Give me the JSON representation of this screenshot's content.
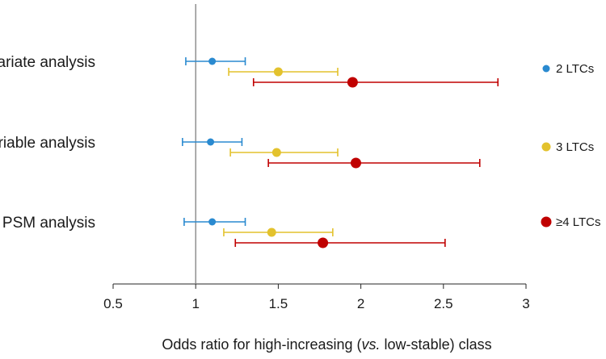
{
  "chart_data": {
    "type": "forest",
    "xlabel": "Odds ratio for high-increasing (vs. low-stable) class",
    "xlabel_parts": [
      "Odds ratio for high-increasing (",
      "vs.",
      " low-stable) class"
    ],
    "xlim": [
      0.5,
      3
    ],
    "xticks": [
      0.5,
      1,
      1.5,
      2,
      2.5,
      3
    ],
    "xtick_labels": [
      "0.5",
      "1",
      "1.5",
      "2",
      "2.5",
      "3"
    ],
    "reference_line": 1,
    "groups": [
      "Univariate analysis",
      "Multivariable analysis",
      "PSM analysis"
    ],
    "series": [
      {
        "name": "2 LTCs",
        "color": "#2a8ad0",
        "points": [
          {
            "group": "Univariate analysis",
            "or": 1.1,
            "lo": 0.94,
            "hi": 1.3
          },
          {
            "group": "Multivariable analysis",
            "or": 1.09,
            "lo": 0.92,
            "hi": 1.28
          },
          {
            "group": "PSM analysis",
            "or": 1.1,
            "lo": 0.93,
            "hi": 1.3
          }
        ]
      },
      {
        "name": "3 LTCs",
        "color": "#e3c22d",
        "points": [
          {
            "group": "Univariate analysis",
            "or": 1.5,
            "lo": 1.2,
            "hi": 1.86
          },
          {
            "group": "Multivariable analysis",
            "or": 1.49,
            "lo": 1.21,
            "hi": 1.86
          },
          {
            "group": "PSM analysis",
            "or": 1.46,
            "lo": 1.17,
            "hi": 1.83
          }
        ]
      },
      {
        "name": "≥4 LTCs",
        "color": "#c00000",
        "points": [
          {
            "group": "Univariate analysis",
            "or": 1.95,
            "lo": 1.35,
            "hi": 2.83
          },
          {
            "group": "Multivariable analysis",
            "or": 1.97,
            "lo": 1.44,
            "hi": 2.72
          },
          {
            "group": "PSM analysis",
            "or": 1.77,
            "lo": 1.24,
            "hi": 2.51
          }
        ]
      }
    ]
  }
}
